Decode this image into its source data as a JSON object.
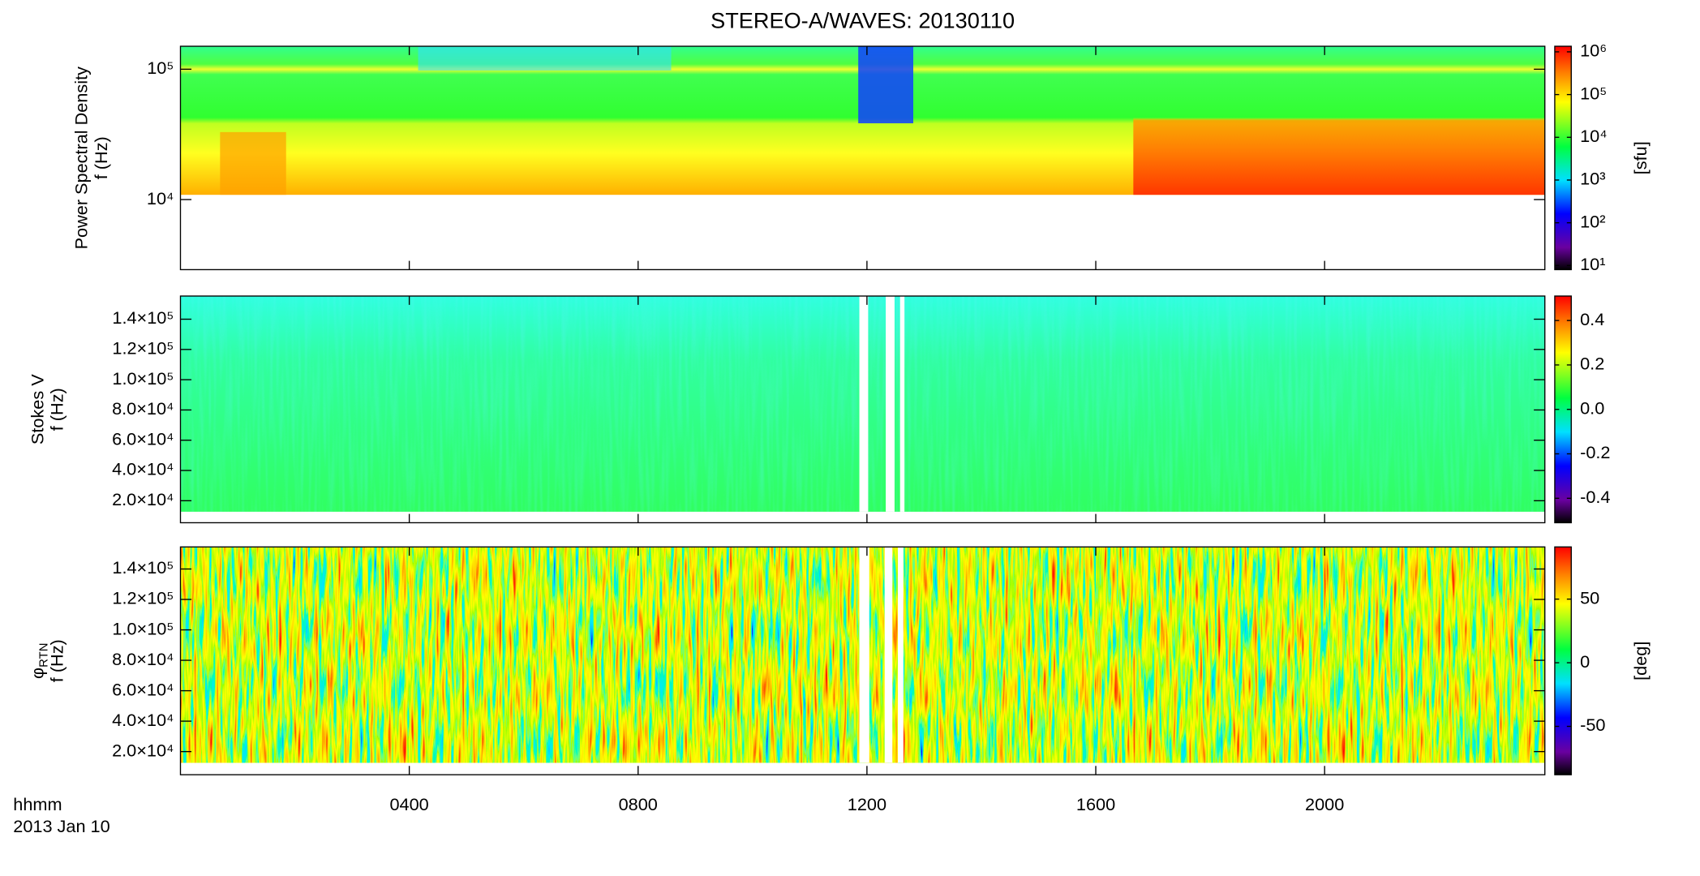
{
  "title": "STEREO-A/WAVES: 20130110",
  "x_axis": {
    "xlim": [
      0,
      23.85
    ],
    "xticks": [
      {
        "value": 4,
        "label": "0400"
      },
      {
        "value": 8,
        "label": "0800"
      },
      {
        "value": 12,
        "label": "1200"
      },
      {
        "value": 16,
        "label": "1600"
      },
      {
        "value": 20,
        "label": "2000"
      }
    ],
    "label": "hhmm",
    "date": "2013 Jan 10"
  },
  "chart_data": [
    {
      "type": "spectrogram",
      "ylabel": "Power Spectral Density",
      "yunit_label": "f (Hz)",
      "yscale": "log",
      "ylim": [
        2900,
        150000
      ],
      "yticks": [
        {
          "value": 10000,
          "label": "10⁴"
        },
        {
          "value": 100000,
          "label": "10⁵"
        }
      ],
      "colorbar": {
        "label": "[sfu]",
        "scale": "log",
        "clim": [
          8,
          1350000
        ],
        "ticks": [
          {
            "value": 10,
            "label": "10¹"
          },
          {
            "value": 100,
            "label": "10²"
          },
          {
            "value": 1000,
            "label": "10³"
          },
          {
            "value": 10000,
            "label": "10⁴"
          },
          {
            "value": 100000,
            "label": "10⁵"
          },
          {
            "value": 1000000,
            "label": "10⁶"
          }
        ]
      }
    },
    {
      "type": "spectrogram",
      "ylabel": "Stokes V",
      "yunit_label": "f (Hz)",
      "yscale": "linear",
      "ylim": [
        5450,
        155300
      ],
      "yticks": [
        {
          "value": 20000,
          "label": "2.0×10⁴"
        },
        {
          "value": 40000,
          "label": "4.0×10⁴"
        },
        {
          "value": 60000,
          "label": "6.0×10⁴"
        },
        {
          "value": 80000,
          "label": "8.0×10⁴"
        },
        {
          "value": 100000,
          "label": "1.0×10⁵"
        },
        {
          "value": 120000,
          "label": "1.2×10⁵"
        },
        {
          "value": 140000,
          "label": "1.4×10⁵"
        }
      ],
      "colorbar": {
        "scale": "linear",
        "clim": [
          -0.51,
          0.51
        ],
        "ticks": [
          -0.4,
          -0.2,
          {
            "value": 0,
            "label": "0.0"
          },
          0.2,
          0.4
        ]
      }
    },
    {
      "type": "spectrogram",
      "ylabel": "φ",
      "ylabel_subscript": "RTN",
      "yunit_label": "f (Hz)",
      "yscale": "linear",
      "ylim": [
        4800,
        154500
      ],
      "yticks": [
        {
          "value": 20000,
          "label": "2.0×10⁴"
        },
        {
          "value": 40000,
          "label": "4.0×10⁴"
        },
        {
          "value": 60000,
          "label": "6.0×10⁴"
        },
        {
          "value": 80000,
          "label": "8.0×10⁴"
        },
        {
          "value": 100000,
          "label": "1.0×10⁵"
        },
        {
          "value": 120000,
          "label": "1.2×10⁵"
        },
        {
          "value": 140000,
          "label": "1.4×10⁵"
        }
      ],
      "colorbar": {
        "label": "[deg]",
        "scale": "linear",
        "clim": [
          -88,
          91
        ],
        "ticks": [
          -50,
          0,
          50
        ]
      }
    }
  ]
}
